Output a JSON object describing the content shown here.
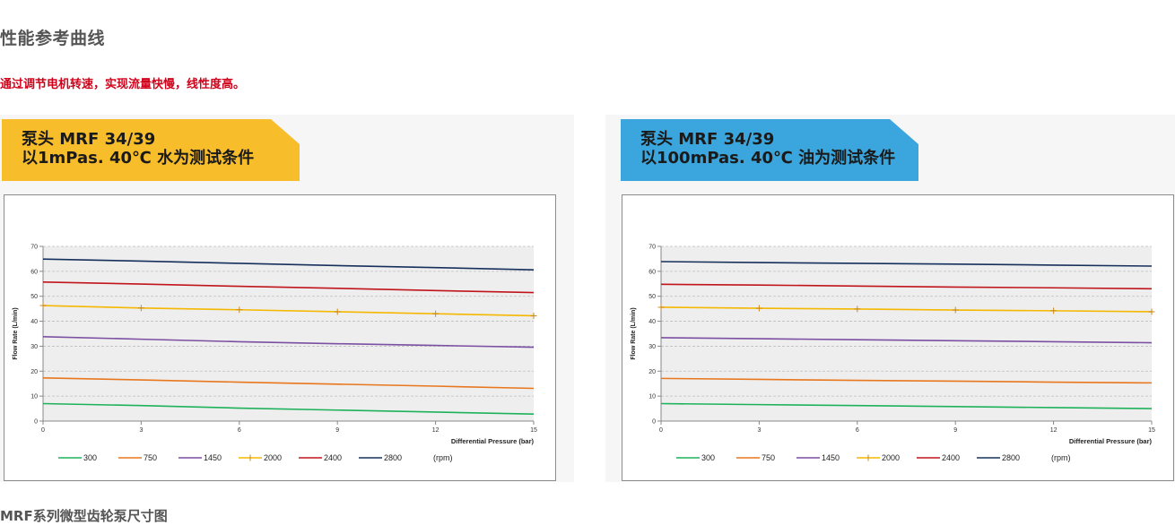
{
  "page": {
    "section_title": "性能参考曲线",
    "subtitle": "通过调节电机转速，实现流量快慢，线性度高。",
    "bottom_title": "MRF系列微型齿轮泵尺寸图"
  },
  "panels": [
    {
      "banner_line1": "泵头 MRF 34/39",
      "banner_line2": "以1mPas. 40℃ 水为测试条件",
      "banner_color": "#f7bd2a"
    },
    {
      "banner_line1": "泵头 MRF 34/39",
      "banner_line2": "以100mPas. 40℃ 油为测试条件",
      "banner_color": "#3aa6dd"
    }
  ],
  "chart_data": [
    {
      "type": "line",
      "x": [
        0,
        3,
        6,
        9,
        12,
        15
      ],
      "xlim": [
        0,
        15
      ],
      "ylim": [
        0,
        70
      ],
      "xticks": [
        0,
        3,
        6,
        9,
        12,
        15
      ],
      "yticks": [
        0,
        10,
        20,
        30,
        40,
        50,
        60,
        70
      ],
      "xlabel": "Differential Pressure    (bar)",
      "ylabel": "Flow Rate    (L/min)",
      "legend_unit": "(rpm)",
      "legend_position": "bottom",
      "grid": true,
      "series": [
        {
          "name": "300",
          "color": "#1db25a",
          "marker": false,
          "values": [
            7,
            6.2,
            5.2,
            4.4,
            3.6,
            2.8
          ]
        },
        {
          "name": "750",
          "color": "#e8771e",
          "marker": false,
          "values": [
            17.3,
            16.5,
            15.6,
            14.8,
            14,
            13.1
          ]
        },
        {
          "name": "1450",
          "color": "#7b4fa2",
          "marker": false,
          "values": [
            33.8,
            32.8,
            31.8,
            31,
            30.3,
            29.6
          ]
        },
        {
          "name": "2000",
          "color": "#f5b800",
          "marker": true,
          "values": [
            46.3,
            45.3,
            44.6,
            43.8,
            43,
            42.2
          ]
        },
        {
          "name": "2400",
          "color": "#c0151b",
          "marker": false,
          "values": [
            55.7,
            54.9,
            54,
            53.2,
            52.3,
            51.5
          ]
        },
        {
          "name": "2800",
          "color": "#16305c",
          "marker": false,
          "values": [
            64.9,
            64.1,
            63.2,
            62.3,
            61.5,
            60.6
          ]
        }
      ]
    },
    {
      "type": "line",
      "x": [
        0,
        3,
        6,
        9,
        12,
        15
      ],
      "xlim": [
        0,
        15
      ],
      "ylim": [
        0,
        70
      ],
      "xticks": [
        0,
        3,
        6,
        9,
        12,
        15
      ],
      "yticks": [
        0,
        10,
        20,
        30,
        40,
        50,
        60,
        70
      ],
      "xlabel": "Differential Pressure    (bar)",
      "ylabel": "Flow Rate    (L/min)",
      "legend_unit": "(rpm)",
      "legend_position": "bottom",
      "grid": true,
      "series": [
        {
          "name": "300",
          "color": "#1db25a",
          "marker": false,
          "values": [
            7,
            6.6,
            6.2,
            5.8,
            5.4,
            5
          ]
        },
        {
          "name": "750",
          "color": "#e8771e",
          "marker": false,
          "values": [
            17.1,
            16.7,
            16.3,
            16,
            15.6,
            15.3
          ]
        },
        {
          "name": "1450",
          "color": "#7b4fa2",
          "marker": false,
          "values": [
            33.4,
            33,
            32.6,
            32.2,
            31.8,
            31.4
          ]
        },
        {
          "name": "2000",
          "color": "#f5b800",
          "marker": true,
          "values": [
            45.6,
            45.2,
            44.9,
            44.5,
            44.2,
            43.8
          ]
        },
        {
          "name": "2400",
          "color": "#c0151b",
          "marker": false,
          "values": [
            54.8,
            54.5,
            54.1,
            53.7,
            53.4,
            53
          ]
        },
        {
          "name": "2800",
          "color": "#16305c",
          "marker": false,
          "values": [
            63.9,
            63.5,
            63.2,
            62.9,
            62.5,
            62.1
          ]
        }
      ]
    }
  ]
}
